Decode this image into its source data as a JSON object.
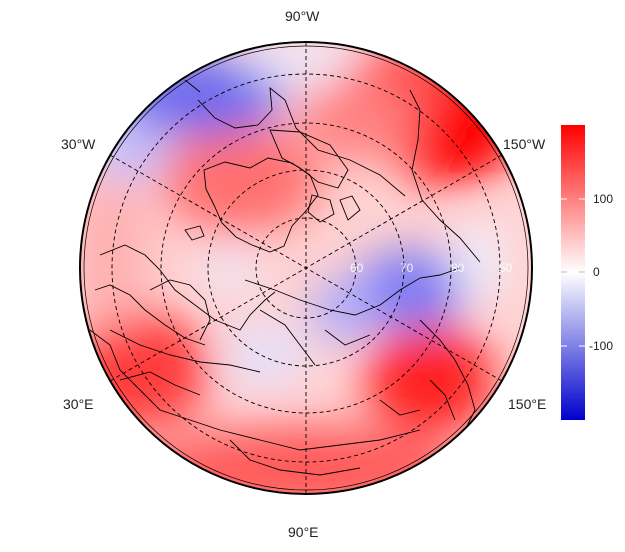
{
  "map": {
    "projection": "north-polar-stereographic",
    "longitude_labels": {
      "top": "90°W",
      "upper_left": "30°W",
      "upper_right": "150°W",
      "lower_left": "30°E",
      "lower_right": "150°E",
      "bottom": "90°E"
    },
    "latitude_ring_labels": [
      "60",
      "70",
      "80",
      "50"
    ],
    "colors": {
      "high": "#ff0000",
      "mid": "#ffffff",
      "low": "#0000cd",
      "coast": "#000000",
      "grid": "#000000"
    }
  },
  "colorbar": {
    "ticks": [
      "100",
      "0",
      "-100"
    ],
    "tick_values": [
      100,
      0,
      -100
    ],
    "range": [
      -200,
      200
    ]
  }
}
